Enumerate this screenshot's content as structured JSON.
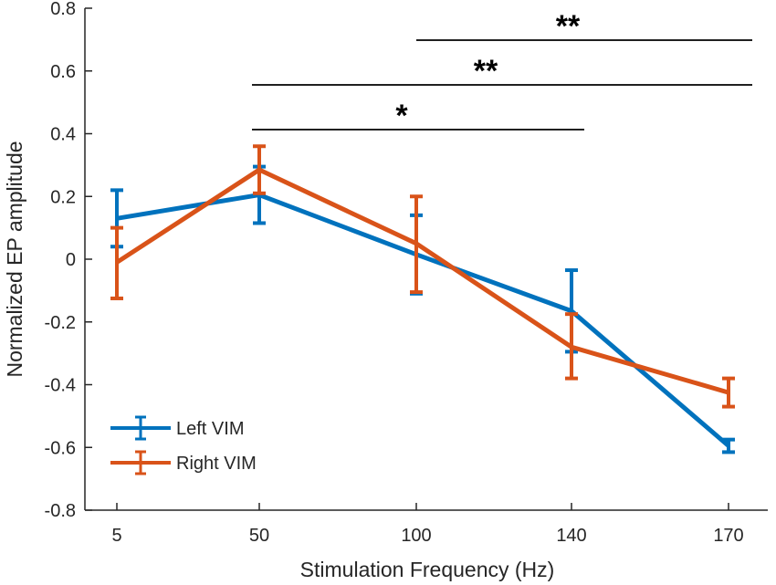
{
  "chart_data": {
    "type": "line",
    "xlabel": "Stimulation Frequency (Hz)",
    "ylabel": "Normalized EP amplitude",
    "categories": [
      "5",
      "50",
      "100",
      "140",
      "170"
    ],
    "ylim": [
      -0.8,
      0.8
    ],
    "yticks": [
      "-0.8",
      "-0.6",
      "-0.4",
      "-0.2",
      "0",
      "0.2",
      "0.4",
      "0.6",
      "0.8"
    ],
    "grid": false,
    "legend_position": "bottom-left",
    "series": [
      {
        "name": "Left VIM",
        "color": "#0072BD",
        "values": [
          0.13,
          0.205,
          0.015,
          -0.165,
          -0.595
        ],
        "err_low": [
          0.04,
          0.115,
          -0.11,
          -0.295,
          -0.615
        ],
        "err_high": [
          0.22,
          0.295,
          0.14,
          -0.035,
          -0.575
        ]
      },
      {
        "name": "Right VIM",
        "color": "#D95319",
        "values": [
          -0.01,
          0.285,
          0.05,
          -0.28,
          -0.425
        ],
        "err_low": [
          -0.125,
          0.21,
          -0.105,
          -0.38,
          -0.47
        ],
        "err_high": [
          0.1,
          0.36,
          0.2,
          -0.175,
          -0.38
        ]
      }
    ],
    "significance": [
      {
        "label": "*",
        "from": "50",
        "to": "140"
      },
      {
        "label": "**",
        "from": "50",
        "to": "170"
      },
      {
        "label": "**",
        "from": "100",
        "to": "170"
      }
    ]
  }
}
